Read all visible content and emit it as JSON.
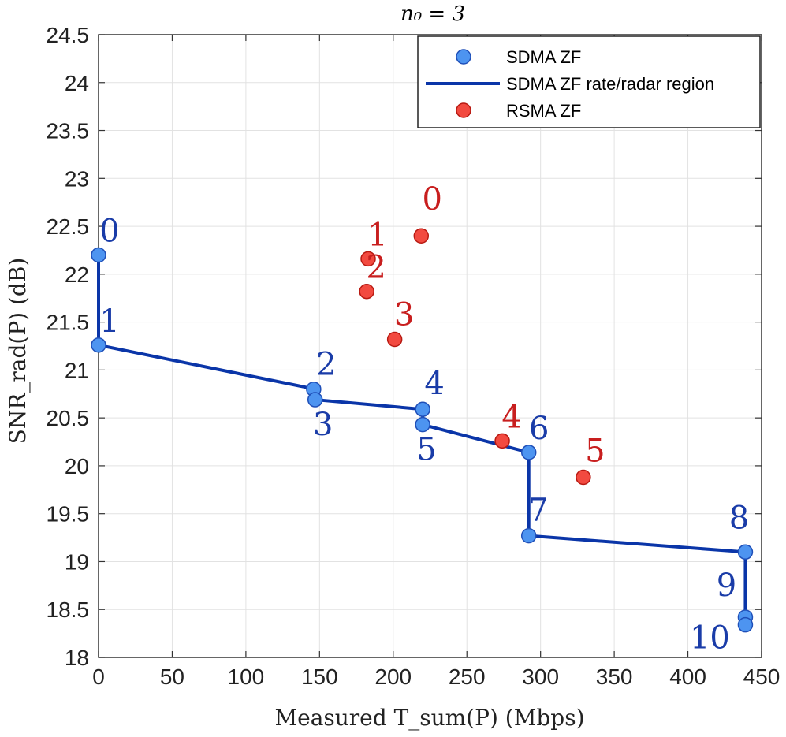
{
  "chart_data": {
    "type": "scatter",
    "title": "n₀ = 3",
    "xlabel": "Measured T_sum(P) (Mbps)",
    "ylabel": "SNR_rad(P) (dB)",
    "xlim": [
      0,
      450
    ],
    "ylim": [
      18,
      24.5
    ],
    "xticks": [
      0,
      50,
      100,
      150,
      200,
      250,
      300,
      350,
      400,
      450
    ],
    "yticks": [
      18,
      18.5,
      19,
      19.5,
      20,
      20.5,
      21,
      21.5,
      22,
      22.5,
      23,
      23.5,
      24,
      24.5
    ],
    "grid": true,
    "legend_position": "top-right",
    "colors": {
      "sdma_fill": "#4d94f0",
      "sdma_edge": "#1f4fb8",
      "sdma_line": "#0a35a8",
      "sdma_label": "#1a3ca8",
      "rsma_fill": "#f24a40",
      "rsma_edge": "#b81a12",
      "rsma_label": "#c81e1e",
      "grid": "#e2e2e2",
      "axis": "#333333"
    },
    "series": [
      {
        "name": "SDMA ZF",
        "kind": "points",
        "labels": [
          "0",
          "1",
          "2",
          "3",
          "4",
          "5",
          "6",
          "7",
          "8",
          "9",
          "10"
        ],
        "x": [
          0,
          0,
          146,
          147,
          220,
          220,
          292,
          292,
          439,
          439,
          439
        ],
        "y": [
          22.2,
          21.26,
          20.8,
          20.69,
          20.59,
          20.43,
          20.14,
          19.27,
          19.1,
          18.42,
          18.34
        ]
      },
      {
        "name": "SDMA ZF rate/radar region",
        "kind": "line",
        "x": [
          0,
          0,
          147,
          147,
          220,
          220,
          292,
          292,
          439,
          439
        ],
        "y": [
          22.2,
          21.26,
          20.8,
          20.69,
          20.59,
          20.43,
          20.14,
          19.27,
          19.1,
          18.34
        ]
      },
      {
        "name": "RSMA ZF",
        "kind": "points",
        "labels": [
          "0",
          "1",
          "2",
          "3",
          "4",
          "5"
        ],
        "x": [
          219,
          183,
          182,
          201,
          274,
          329
        ],
        "y": [
          22.4,
          22.16,
          21.82,
          21.32,
          20.26,
          19.88
        ]
      }
    ]
  }
}
